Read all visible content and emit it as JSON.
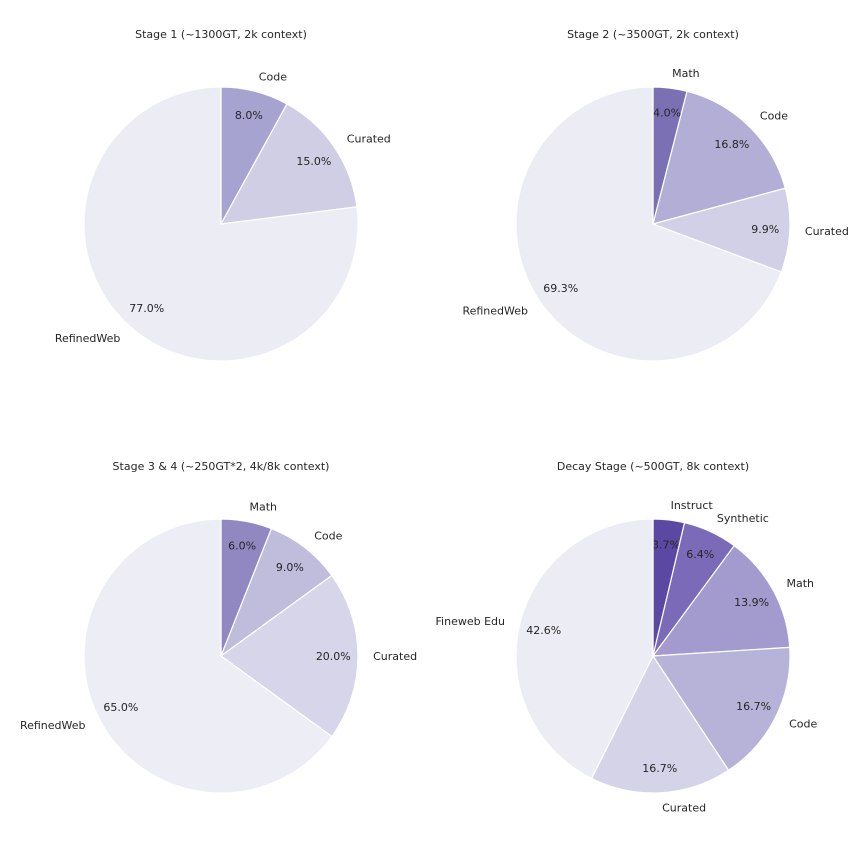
{
  "figure": {
    "background": "#ffffff",
    "text_color": "#262626"
  },
  "chart_data": [
    {
      "type": "pie",
      "title": "Stage 1 (~1300GT, 2k context)",
      "start_angle": "top",
      "direction": "clockwise",
      "legend": false,
      "slices": [
        {
          "label": "Code",
          "value": 8.0,
          "pct_label": "8.0%",
          "color": "#a7a3d0"
        },
        {
          "label": "Curated",
          "value": 15.0,
          "pct_label": "15.0%",
          "color": "#d0cee5"
        },
        {
          "label": "RefinedWeb",
          "value": 77.0,
          "pct_label": "77.0%",
          "color": "#ececf4"
        }
      ]
    },
    {
      "type": "pie",
      "title": "Stage 2 (~3500GT, 2k context)",
      "start_angle": "top",
      "direction": "clockwise",
      "legend": false,
      "slices": [
        {
          "label": "Math",
          "value": 4.0,
          "pct_label": "4.0%",
          "color": "#7c70b5"
        },
        {
          "label": "Code",
          "value": 16.8,
          "pct_label": "16.8%",
          "color": "#b2aed6"
        },
        {
          "label": "Curated",
          "value": 9.9,
          "pct_label": "9.9%",
          "color": "#d2d0e6"
        },
        {
          "label": "RefinedWeb",
          "value": 69.3,
          "pct_label": "69.3%",
          "color": "#ececf4"
        }
      ]
    },
    {
      "type": "pie",
      "title": "Stage 3 & 4 (~250GT*2, 4k/8k context)",
      "start_angle": "top",
      "direction": "clockwise",
      "legend": false,
      "slices": [
        {
          "label": "Math",
          "value": 6.0,
          "pct_label": "6.0%",
          "color": "#9188c2"
        },
        {
          "label": "Code",
          "value": 9.0,
          "pct_label": "9.0%",
          "color": "#c0bcdc"
        },
        {
          "label": "Curated",
          "value": 20.0,
          "pct_label": "20.0%",
          "color": "#d7d5e9"
        },
        {
          "label": "RefinedWeb",
          "value": 65.0,
          "pct_label": "65.0%",
          "color": "#ededf5"
        }
      ]
    },
    {
      "type": "pie",
      "title": "Decay Stage (~500GT, 8k context)",
      "start_angle": "top",
      "direction": "clockwise",
      "legend": false,
      "slices": [
        {
          "label": "Instruct",
          "value": 3.7,
          "pct_label": "3.7%",
          "color": "#5a48a2"
        },
        {
          "label": "Synthetic",
          "value": 6.4,
          "pct_label": "6.4%",
          "color": "#7a6ab8"
        },
        {
          "label": "Math",
          "value": 13.9,
          "pct_label": "13.9%",
          "color": "#a39bce"
        },
        {
          "label": "Code",
          "value": 16.7,
          "pct_label": "16.7%",
          "color": "#b7b2d8"
        },
        {
          "label": "Curated",
          "value": 16.7,
          "pct_label": "16.7%",
          "color": "#d5d3e8"
        },
        {
          "label": "Fineweb Edu",
          "value": 42.6,
          "pct_label": "42.6%",
          "color": "#ececf4"
        }
      ]
    }
  ]
}
